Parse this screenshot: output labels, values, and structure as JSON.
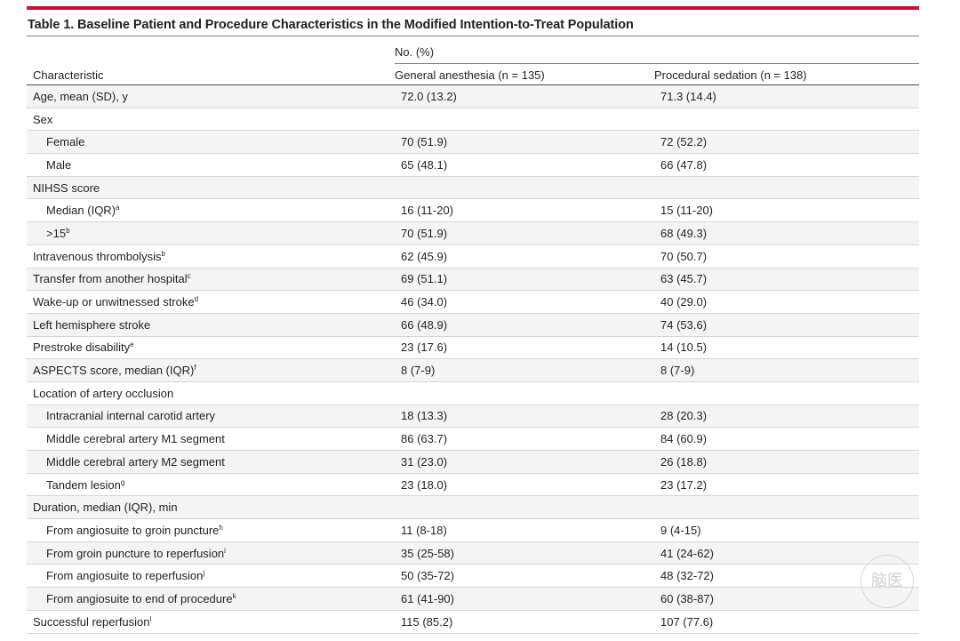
{
  "table": {
    "title": "Table 1. Baseline Patient and Procedure Characteristics in the Modified Intention-to-Treat Population",
    "header": {
      "no_percent": "No. (%)",
      "characteristic": "Characteristic",
      "general_anesthesia": "General anesthesia (n = 135)",
      "procedural_sedation": "Procedural sedation (n = 138)"
    },
    "rows": [
      {
        "label": "Age, mean (SD), y",
        "sup": "",
        "ga": "72.0 (13.2)",
        "ps": "71.3 (14.4)"
      },
      {
        "label": "Sex",
        "sup": "",
        "ga": "",
        "ps": ""
      },
      {
        "label": "Female",
        "sup": "",
        "ga": "70 (51.9)",
        "ps": "72 (52.2)"
      },
      {
        "label": "Male",
        "sup": "",
        "ga": "65 (48.1)",
        "ps": "66 (47.8)"
      },
      {
        "label": "NIHSS score",
        "sup": "",
        "ga": "",
        "ps": ""
      },
      {
        "label": "Median (IQR)",
        "sup": "a",
        "ga": "16 (11-20)",
        "ps": "15 (11-20)"
      },
      {
        "label": ">15",
        "sup": "b",
        "ga": "70 (51.9)",
        "ps": "68 (49.3)"
      },
      {
        "label": "Intravenous thrombolysis",
        "sup": "b",
        "ga": "62 (45.9)",
        "ps": "70 (50.7)"
      },
      {
        "label": "Transfer from another hospital",
        "sup": "c",
        "ga": "69 (51.1)",
        "ps": "63 (45.7)"
      },
      {
        "label": "Wake-up or unwitnessed stroke",
        "sup": "d",
        "ga": "46 (34.0)",
        "ps": "40 (29.0)"
      },
      {
        "label": "Left hemisphere stroke",
        "sup": "",
        "ga": "66 (48.9)",
        "ps": "74 (53.6)"
      },
      {
        "label": "Prestroke disability",
        "sup": "e",
        "ga": "23 (17.6)",
        "ps": "14 (10.5)"
      },
      {
        "label": "ASPECTS score, median (IQR)",
        "sup": "f",
        "ga": "8 (7-9)",
        "ps": "8 (7-9)"
      },
      {
        "label": "Location of artery occlusion",
        "sup": "",
        "ga": "",
        "ps": ""
      },
      {
        "label": "Intracranial internal carotid artery",
        "sup": "",
        "ga": "18 (13.3)",
        "ps": "28 (20.3)"
      },
      {
        "label": "Middle cerebral artery M1 segment",
        "sup": "",
        "ga": "86 (63.7)",
        "ps": "84 (60.9)"
      },
      {
        "label": "Middle cerebral artery M2 segment",
        "sup": "",
        "ga": "31 (23.0)",
        "ps": "26 (18.8)"
      },
      {
        "label": "Tandem lesion",
        "sup": "g",
        "ga": "23 (18.0)",
        "ps": "23 (17.2)"
      },
      {
        "label": "Duration, median (IQR), min",
        "sup": "",
        "ga": "",
        "ps": ""
      },
      {
        "label": "From angiosuite to groin puncture",
        "sup": "h",
        "ga": "11 (8-18)",
        "ps": "9 (4-15)"
      },
      {
        "label": "From groin puncture to reperfusion",
        "sup": "i",
        "ga": "35 (25-58)",
        "ps": "41 (24-62)"
      },
      {
        "label": "From angiosuite to reperfusion",
        "sup": "j",
        "ga": "50 (35-72)",
        "ps": "48 (32-72)"
      },
      {
        "label": "From angiosuite to end of procedure",
        "sup": "k",
        "ga": "61 (41-90)",
        "ps": "60 (38-87)"
      },
      {
        "label": "Successful reperfusion",
        "sup": "l",
        "ga": "115 (85.2)",
        "ps": "107 (77.6)"
      }
    ]
  },
  "watermark_text": "脑医"
}
